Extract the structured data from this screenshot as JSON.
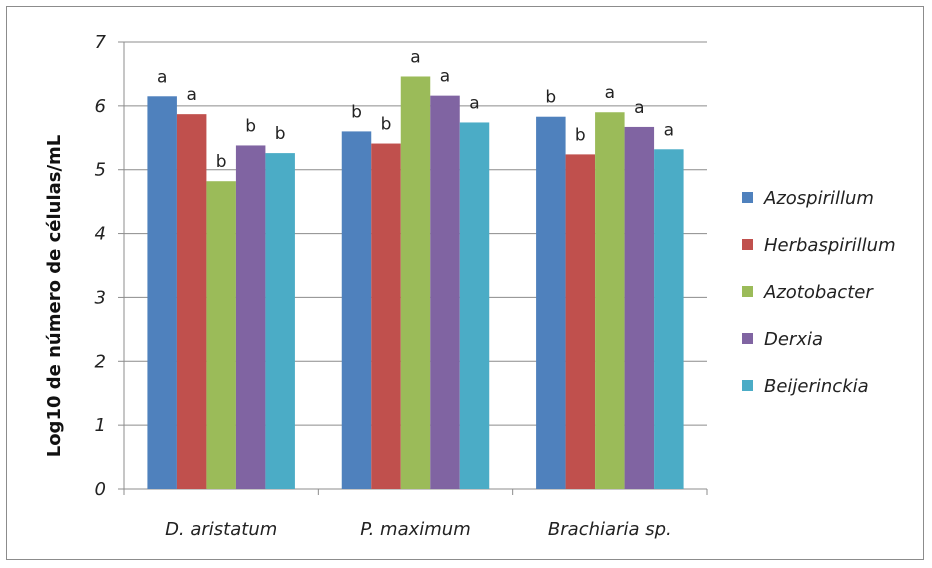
{
  "chart_data": {
    "type": "bar",
    "ylabel": "Log10 de número de células/mL",
    "xlabel": "",
    "ylim": [
      0,
      7
    ],
    "yticks": [
      "0",
      "1",
      "2",
      "3",
      "4",
      "5",
      "6",
      "7"
    ],
    "grid": "horizontal",
    "legend_position": "right",
    "categories": [
      "D. aristatum",
      "P. maximum",
      "Brachiaria sp."
    ],
    "series": [
      {
        "name": "Azospirillum",
        "color": "#4f81bd",
        "values": [
          6.15,
          5.6,
          5.83
        ],
        "labels": [
          "a",
          "b",
          "b"
        ]
      },
      {
        "name": "Herbaspirillum",
        "color": "#c0504d",
        "values": [
          5.87,
          5.41,
          5.24
        ],
        "labels": [
          "a",
          "b",
          "b"
        ]
      },
      {
        "name": "Azotobacter",
        "color": "#9bbb59",
        "values": [
          4.82,
          6.46,
          5.9
        ],
        "labels": [
          "b",
          "a",
          "a"
        ]
      },
      {
        "name": "Derxia",
        "color": "#8064a2",
        "values": [
          5.38,
          6.16,
          5.67
        ],
        "labels": [
          "b",
          "a",
          "a"
        ]
      },
      {
        "name": "Beijerinckia",
        "color": "#4bacc6",
        "values": [
          5.26,
          5.74,
          5.32
        ],
        "labels": [
          "b",
          "a",
          "a"
        ]
      }
    ]
  }
}
